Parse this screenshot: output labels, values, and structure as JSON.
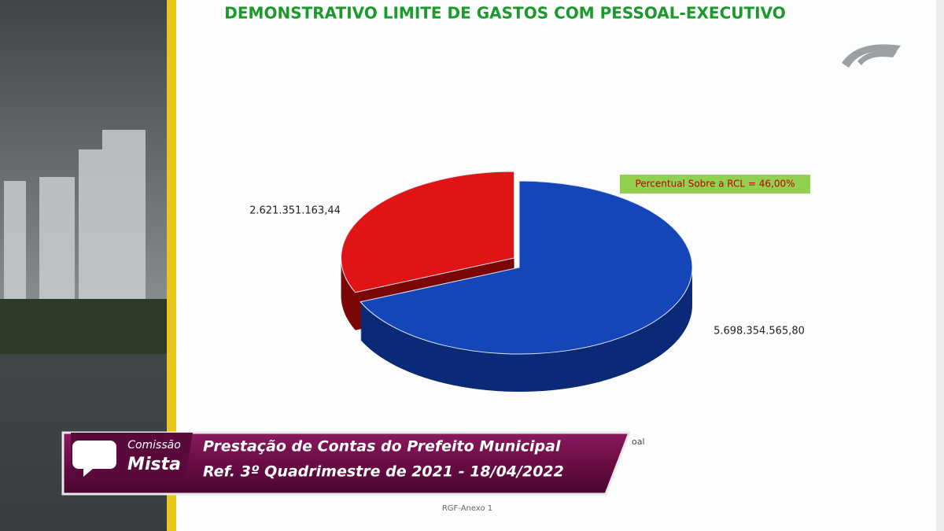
{
  "chart_data": {
    "type": "pie",
    "title": "DEMONSTRATIVO LIMITE DE GASTOS COM PESSOAL-EXECUTIVO",
    "annotation": "Percentual Sobre a RCL = 46,00%",
    "values": [
      5698354565.8,
      2621351163.44
    ],
    "value_labels": [
      "5.698.354.565,80",
      "2.621.351.163,44"
    ],
    "colors": [
      "#1446b8",
      "#e01414"
    ],
    "side_colors": [
      "#0a2a78",
      "#7a0606"
    ],
    "legend_fragment": "oal",
    "footer": "RGF-Anexo 1"
  },
  "banner": {
    "logo_top": "Comissão",
    "logo_bottom": "Mista",
    "line1": "Prestação de Contas do Prefeito Municipal",
    "line2": "Ref. 3º Quadrimestre de 2021 - 18/04/2022"
  }
}
